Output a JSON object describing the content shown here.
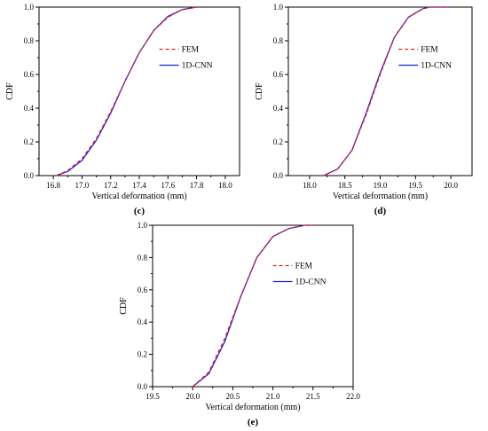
{
  "chart_data": [
    {
      "type": "line",
      "panel_label": "(c)",
      "xlabel": "Vertical deformation (mm)",
      "ylabel": "CDF",
      "xlim": [
        16.7,
        18.1
      ],
      "ylim": [
        0,
        1
      ],
      "xticks": [
        "16.8",
        "17.0",
        "17.2",
        "17.4",
        "17.6",
        "17.8",
        "18.0"
      ],
      "yticks": [
        "0.0",
        "0.2",
        "0.4",
        "0.6",
        "0.8",
        "1.0"
      ],
      "legend": [
        "FEM",
        "1D-CNN"
      ],
      "legend_position": "upper-right",
      "series": [
        {
          "name": "FEM",
          "color": "#e8231f",
          "style": "dashed",
          "x": [
            16.82,
            16.9,
            17.0,
            17.1,
            17.2,
            17.3,
            17.4,
            17.5,
            17.6,
            17.7,
            17.8
          ],
          "y": [
            0.0,
            0.03,
            0.1,
            0.22,
            0.38,
            0.56,
            0.73,
            0.86,
            0.94,
            0.985,
            1.0
          ]
        },
        {
          "name": "1D-CNN",
          "color": "#1f1fd0",
          "style": "solid",
          "x": [
            16.82,
            16.9,
            17.0,
            17.1,
            17.2,
            17.3,
            17.4,
            17.5,
            17.6,
            17.7,
            17.8
          ],
          "y": [
            0.0,
            0.025,
            0.09,
            0.21,
            0.37,
            0.56,
            0.73,
            0.86,
            0.945,
            0.985,
            1.0
          ]
        }
      ]
    },
    {
      "type": "line",
      "panel_label": "(d)",
      "xlabel": "Vertical deformation (mm)",
      "ylabel": "CDF",
      "xlim": [
        17.7,
        20.3
      ],
      "ylim": [
        0,
        1
      ],
      "xticks": [
        "18.0",
        "18.5",
        "19.0",
        "19.5",
        "20.0"
      ],
      "yticks": [
        "0.0",
        "0.2",
        "0.4",
        "0.6",
        "0.8",
        "1.0"
      ],
      "legend": [
        "FEM",
        "1D-CNN"
      ],
      "legend_position": "upper-right",
      "series": [
        {
          "name": "FEM",
          "color": "#e8231f",
          "style": "dashed",
          "x": [
            18.2,
            18.4,
            18.6,
            18.8,
            18.9,
            19.0,
            19.2,
            19.4,
            19.6,
            19.7,
            20.0
          ],
          "y": [
            0.0,
            0.04,
            0.15,
            0.36,
            0.48,
            0.6,
            0.82,
            0.94,
            0.99,
            1.0,
            1.0
          ]
        },
        {
          "name": "1D-CNN",
          "color": "#1f1fd0",
          "style": "solid",
          "x": [
            18.2,
            18.4,
            18.6,
            18.8,
            18.9,
            19.0,
            19.2,
            19.4,
            19.6,
            19.7,
            20.0
          ],
          "y": [
            0.0,
            0.04,
            0.15,
            0.37,
            0.49,
            0.61,
            0.82,
            0.94,
            0.99,
            1.0,
            1.0
          ]
        }
      ]
    },
    {
      "type": "line",
      "panel_label": "(e)",
      "xlabel": "Vertical deformation (mm)",
      "ylabel": "CDF",
      "xlim": [
        19.5,
        22.0
      ],
      "ylim": [
        0,
        1
      ],
      "xticks": [
        "19.5",
        "20.0",
        "20.5",
        "21.0",
        "21.5",
        "22.0"
      ],
      "yticks": [
        "0.0",
        "0.2",
        "0.4",
        "0.6",
        "0.8",
        "1.0"
      ],
      "legend": [
        "FEM",
        "1D-CNN"
      ],
      "legend_position": "upper-right",
      "series": [
        {
          "name": "FEM",
          "color": "#e8231f",
          "style": "dashed",
          "x": [
            20.0,
            20.2,
            20.4,
            20.5,
            20.6,
            20.8,
            21.0,
            21.2,
            21.4,
            21.5
          ],
          "y": [
            0.0,
            0.09,
            0.3,
            0.43,
            0.56,
            0.8,
            0.93,
            0.98,
            1.0,
            1.0
          ]
        },
        {
          "name": "1D-CNN",
          "color": "#1f1fd0",
          "style": "solid",
          "x": [
            20.0,
            20.2,
            20.4,
            20.5,
            20.6,
            20.8,
            21.0,
            21.2,
            21.4,
            21.5
          ],
          "y": [
            0.0,
            0.08,
            0.28,
            0.42,
            0.56,
            0.8,
            0.93,
            0.98,
            1.0,
            1.0
          ]
        }
      ]
    }
  ]
}
